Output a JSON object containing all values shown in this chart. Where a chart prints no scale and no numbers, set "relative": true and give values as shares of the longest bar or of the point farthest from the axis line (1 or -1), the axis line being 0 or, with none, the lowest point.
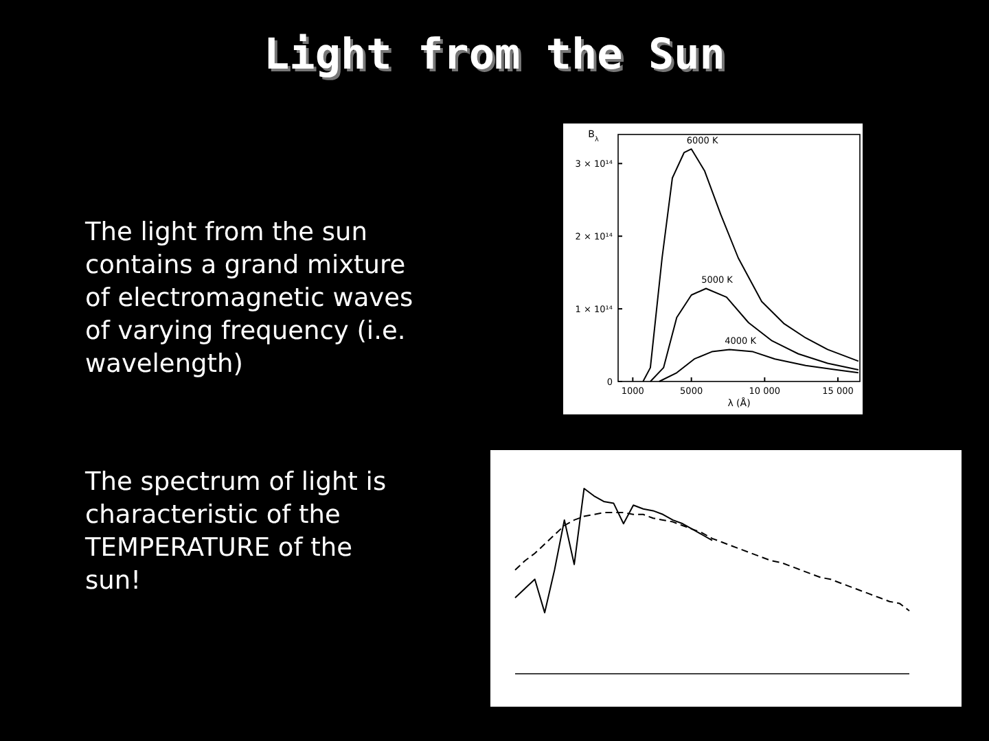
{
  "chart_data": [
    {
      "type": "other",
      "title": "Light from the Sun",
      "annotations": [
        "The light from the sun\ncontains a grand mixture\nof electromagnetic waves\nof varying frequency (i.e.\nwavelength)",
        "The spectrum of light is\ncharacteristic of the\nTEMPERATURE of the\nsun!"
      ]
    },
    {
      "type": "line",
      "xlabel": "λ (Å)",
      "ylabel": "B$_{λ}$",
      "xlim": [
        0,
        16500
      ],
      "xticks": [
        1000,
        5000,
        {
          "value": 10000,
          "label": "10 000"
        },
        {
          "value": 15000,
          "label": "15 000"
        }
      ],
      "ylim": [
        0,
        340000000000000.0
      ],
      "yticks": [
        0,
        {
          "value": 100000000000000.0,
          "label": "1 × 10¹⁴"
        },
        {
          "value": 200000000000000.0,
          "label": "2 × 10¹⁴"
        },
        {
          "value": 300000000000000.0,
          "label": "3 × 10¹⁴"
        }
      ],
      "line_style": "solid",
      "series": [
        {
          "name": "6000 K",
          "color": "#000000",
          "x": [
            1700,
            2200,
            3000,
            3700,
            4500,
            5000,
            5900,
            7000,
            8200,
            9800,
            11300,
            12800,
            14300,
            16400
          ],
          "values": [
            0,
            19000000000000.0,
            170000000000000.0,
            280000000000000.0,
            315000000000000.0,
            320000000000000.0,
            290000000000000.0,
            230000000000000.0,
            170000000000000.0,
            110000000000000.0,
            80000000000000.0,
            60000000000000.0,
            44000000000000.0,
            28000000000000.0
          ]
        },
        {
          "name": "5000 K",
          "color": "#000000",
          "x": [
            2200,
            3100,
            4000,
            5000,
            6000,
            7400,
            8900,
            10500,
            12300,
            14300,
            16400
          ],
          "values": [
            0,
            19000000000000.0,
            88000000000000.0,
            119000000000000.0,
            128000000000000.0,
            116000000000000.0,
            81000000000000.0,
            56000000000000.0,
            38000000000000.0,
            25000000000000.0,
            16000000000000.0
          ]
        },
        {
          "name": "4000 K",
          "color": "#000000",
          "x": [
            2800,
            4000,
            5200,
            6400,
            7600,
            9200,
            10700,
            12800,
            14900,
            16400
          ],
          "values": [
            0,
            12000000000000.0,
            31000000000000.0,
            41000000000000.0,
            44000000000000.0,
            41000000000000.0,
            31000000000000.0,
            22000000000000.0,
            16000000000000.0,
            12000000000000.0
          ]
        }
      ]
    },
    {
      "type": "line",
      "relative": true,
      "categories": [
        null,
        null,
        null,
        null,
        null,
        null,
        null,
        null,
        null,
        null,
        null,
        null,
        null,
        null,
        null,
        null,
        null,
        null,
        null,
        null,
        null,
        null,
        null,
        null,
        null,
        null,
        null,
        null,
        null,
        null,
        null,
        null,
        null,
        null,
        null,
        null,
        null,
        null,
        null,
        null,
        null
      ],
      "series": [
        {
          "color": "#000000",
          "line_style": "solid",
          "values": [
            0.41,
            0.46,
            0.51,
            0.33,
            0.56,
            0.83,
            0.59,
            1.0,
            0.96,
            0.93,
            0.92,
            0.81,
            0.91,
            0.89,
            0.88,
            0.86,
            0.83,
            0.81,
            0.78,
            0.75,
            0.72,
            null,
            null,
            null,
            null,
            null,
            null,
            null,
            null,
            null,
            null,
            null,
            null,
            null,
            null,
            null,
            null,
            null,
            null,
            null,
            null
          ]
        },
        {
          "color": "#000000",
          "line_style": "dashed",
          "values": [
            0.56,
            0.61,
            0.65,
            0.7,
            0.75,
            0.8,
            0.83,
            0.85,
            0.86,
            0.87,
            0.87,
            0.87,
            0.86,
            0.86,
            0.84,
            0.83,
            0.82,
            0.8,
            0.78,
            0.76,
            0.73,
            0.71,
            0.69,
            0.67,
            0.65,
            0.63,
            0.61,
            0.6,
            0.58,
            0.56,
            0.54,
            0.52,
            0.51,
            0.49,
            0.47,
            0.45,
            0.43,
            0.41,
            0.39,
            0.38,
            0.34
          ]
        }
      ]
    }
  ]
}
